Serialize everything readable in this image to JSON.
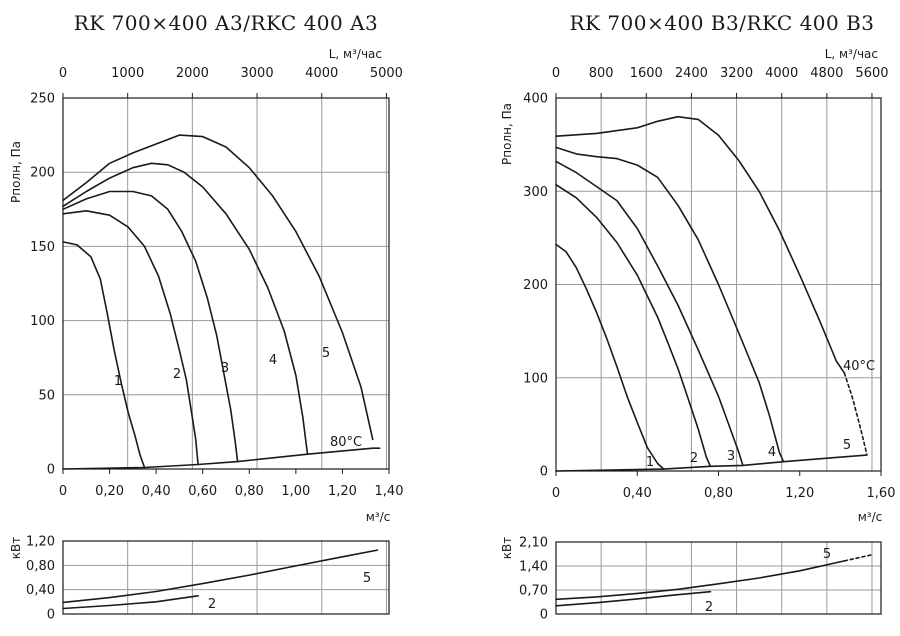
{
  "chart_data": [
    {
      "type": "line",
      "title": "RK 700×400 A3/RKC 400 A3",
      "top_axis_label": "L, м³/час",
      "top_ticks": [
        "0",
        "1000",
        "2000",
        "3000",
        "4000",
        "5000"
      ],
      "xlabel": "м³/с",
      "ylabel": "Pполн, Па",
      "xlim": [
        0,
        1.4
      ],
      "ylim": [
        0,
        250
      ],
      "x_ticks": [
        "0",
        "0,20",
        "0,40",
        "0,60",
        "0,80",
        "1,00",
        "1,20",
        "1,40"
      ],
      "y_ticks": [
        "0",
        "50",
        "100",
        "150",
        "200",
        "250"
      ],
      "grid": true,
      "series": [
        {
          "name": "1",
          "points": [
            [
              0,
              153
            ],
            [
              0.06,
              151
            ],
            [
              0.12,
              143
            ],
            [
              0.16,
              128
            ],
            [
              0.19,
              105
            ],
            [
              0.22,
              80
            ],
            [
              0.25,
              58
            ],
            [
              0.28,
              38
            ],
            [
              0.31,
              22
            ],
            [
              0.33,
              10
            ],
            [
              0.35,
              1
            ]
          ]
        },
        {
          "name": "2",
          "points": [
            [
              0,
              172
            ],
            [
              0.1,
              174
            ],
            [
              0.2,
              171
            ],
            [
              0.28,
              163
            ],
            [
              0.35,
              150
            ],
            [
              0.41,
              130
            ],
            [
              0.46,
              105
            ],
            [
              0.5,
              80
            ],
            [
              0.53,
              60
            ],
            [
              0.55,
              40
            ],
            [
              0.57,
              20
            ],
            [
              0.58,
              3
            ]
          ]
        },
        {
          "name": "3",
          "points": [
            [
              0,
              175
            ],
            [
              0.1,
              182
            ],
            [
              0.2,
              187
            ],
            [
              0.3,
              187
            ],
            [
              0.38,
              184
            ],
            [
              0.45,
              175
            ],
            [
              0.51,
              160
            ],
            [
              0.57,
              140
            ],
            [
              0.62,
              115
            ],
            [
              0.66,
              90
            ],
            [
              0.69,
              65
            ],
            [
              0.72,
              40
            ],
            [
              0.74,
              18
            ],
            [
              0.75,
              5
            ]
          ]
        },
        {
          "name": "4",
          "points": [
            [
              0,
              177
            ],
            [
              0.1,
              187
            ],
            [
              0.2,
              196
            ],
            [
              0.3,
              203
            ],
            [
              0.38,
              206
            ],
            [
              0.45,
              205
            ],
            [
              0.52,
              200
            ],
            [
              0.6,
              190
            ],
            [
              0.7,
              172
            ],
            [
              0.8,
              148
            ],
            [
              0.88,
              122
            ],
            [
              0.95,
              93
            ],
            [
              1.0,
              63
            ],
            [
              1.03,
              35
            ],
            [
              1.05,
              10
            ]
          ]
        },
        {
          "name": "5",
          "points": [
            [
              0,
              181
            ],
            [
              0.1,
              193
            ],
            [
              0.2,
              206
            ],
            [
              0.3,
              213
            ],
            [
              0.4,
              219
            ],
            [
              0.5,
              225
            ],
            [
              0.6,
              224
            ],
            [
              0.7,
              217
            ],
            [
              0.8,
              203
            ],
            [
              0.9,
              184
            ],
            [
              1.0,
              160
            ],
            [
              1.1,
              130
            ],
            [
              1.2,
              92
            ],
            [
              1.28,
              55
            ],
            [
              1.33,
              20
            ]
          ]
        },
        {
          "name": "80°C",
          "points": [
            [
              0,
              0
            ],
            [
              0.35,
              1
            ],
            [
              0.58,
              3
            ],
            [
              0.75,
              5
            ],
            [
              1.05,
              10
            ],
            [
              1.33,
              14
            ],
            [
              1.36,
              14
            ]
          ]
        }
      ],
      "labels": [
        "1",
        "2",
        "3",
        "4",
        "5",
        "80°C"
      ]
    },
    {
      "type": "line",
      "ylabel": "кВт",
      "xlim": [
        0,
        1.4
      ],
      "ylim": [
        0,
        1.2
      ],
      "y_ticks": [
        "0",
        "0,40",
        "0,80",
        "1,20"
      ],
      "grid": true,
      "series": [
        {
          "name": "2",
          "points": [
            [
              0,
              0.09
            ],
            [
              0.2,
              0.14
            ],
            [
              0.4,
              0.2
            ],
            [
              0.58,
              0.3
            ]
          ]
        },
        {
          "name": "5",
          "points": [
            [
              0,
              0.19
            ],
            [
              0.2,
              0.27
            ],
            [
              0.4,
              0.37
            ],
            [
              0.6,
              0.5
            ],
            [
              0.8,
              0.64
            ],
            [
              1.0,
              0.79
            ],
            [
              1.2,
              0.94
            ],
            [
              1.35,
              1.05
            ]
          ]
        }
      ],
      "labels": [
        "2",
        "5"
      ]
    },
    {
      "type": "line",
      "title": "RK 700×400 B3/RKC 400 B3",
      "top_axis_label": "L, м³/час",
      "top_ticks": [
        "0",
        "800",
        "1600",
        "2400",
        "3200",
        "4000",
        "4800",
        "5600"
      ],
      "xlabel": "м³/с",
      "ylabel": "Pполн, Па",
      "xlim": [
        0,
        1.6
      ],
      "ylim": [
        0,
        400
      ],
      "x_ticks": [
        "0",
        "0,40",
        "0,80",
        "1,20",
        "1,60"
      ],
      "y_ticks": [
        "0",
        "100",
        "200",
        "300",
        "400"
      ],
      "grid": true,
      "series": [
        {
          "name": "1",
          "points": [
            [
              0,
              243
            ],
            [
              0.05,
              235
            ],
            [
              0.1,
              218
            ],
            [
              0.15,
              195
            ],
            [
              0.2,
              170
            ],
            [
              0.25,
              142
            ],
            [
              0.3,
              112
            ],
            [
              0.35,
              80
            ],
            [
              0.4,
              52
            ],
            [
              0.45,
              25
            ],
            [
              0.5,
              8
            ],
            [
              0.53,
              2
            ]
          ]
        },
        {
          "name": "2",
          "points": [
            [
              0,
              307
            ],
            [
              0.1,
              293
            ],
            [
              0.2,
              272
            ],
            [
              0.3,
              245
            ],
            [
              0.4,
              210
            ],
            [
              0.5,
              165
            ],
            [
              0.55,
              138
            ],
            [
              0.6,
              110
            ],
            [
              0.65,
              78
            ],
            [
              0.7,
              45
            ],
            [
              0.74,
              15
            ],
            [
              0.76,
              5
            ]
          ]
        },
        {
          "name": "3",
          "points": [
            [
              0,
              332
            ],
            [
              0.1,
              320
            ],
            [
              0.2,
              305
            ],
            [
              0.3,
              290
            ],
            [
              0.4,
              260
            ],
            [
              0.5,
              220
            ],
            [
              0.6,
              178
            ],
            [
              0.7,
              130
            ],
            [
              0.8,
              80
            ],
            [
              0.85,
              50
            ],
            [
              0.9,
              20
            ],
            [
              0.92,
              6
            ]
          ]
        },
        {
          "name": "4",
          "points": [
            [
              0,
              347
            ],
            [
              0.1,
              340
            ],
            [
              0.2,
              337
            ],
            [
              0.3,
              335
            ],
            [
              0.4,
              328
            ],
            [
              0.5,
              315
            ],
            [
              0.6,
              285
            ],
            [
              0.7,
              248
            ],
            [
              0.8,
              200
            ],
            [
              0.9,
              148
            ],
            [
              1.0,
              95
            ],
            [
              1.05,
              60
            ],
            [
              1.1,
              20
            ],
            [
              1.12,
              10
            ]
          ]
        },
        {
          "name": "5",
          "points": [
            [
              0,
              359
            ],
            [
              0.2,
              362
            ],
            [
              0.4,
              368
            ],
            [
              0.5,
              375
            ],
            [
              0.6,
              380
            ],
            [
              0.7,
              377
            ],
            [
              0.8,
              360
            ],
            [
              0.9,
              333
            ],
            [
              1.0,
              300
            ],
            [
              1.1,
              258
            ],
            [
              1.2,
              210
            ],
            [
              1.3,
              160
            ],
            [
              1.38,
              118
            ],
            [
              1.42,
              105
            ]
          ]
        },
        {
          "name": "5-extension",
          "dashed": true,
          "points": [
            [
              1.42,
              105
            ],
            [
              1.46,
              78
            ],
            [
              1.5,
              45
            ],
            [
              1.53,
              18
            ]
          ]
        },
        {
          "name": "40°C",
          "points": [
            [
              0,
              0
            ],
            [
              0.53,
              2
            ],
            [
              0.76,
              5
            ],
            [
              0.92,
              6
            ],
            [
              1.12,
              10
            ],
            [
              1.35,
              14
            ],
            [
              1.53,
              17
            ]
          ]
        }
      ],
      "labels": [
        "1",
        "2",
        "3",
        "4",
        "5",
        "40°C"
      ]
    },
    {
      "type": "line",
      "ylabel": "кВт",
      "xlim": [
        0,
        1.6
      ],
      "ylim": [
        0,
        2.1
      ],
      "y_ticks": [
        "0",
        "0,70",
        "1,40",
        "2,10"
      ],
      "grid": true,
      "series": [
        {
          "name": "2",
          "points": [
            [
              0,
              0.24
            ],
            [
              0.2,
              0.33
            ],
            [
              0.4,
              0.44
            ],
            [
              0.58,
              0.55
            ],
            [
              0.76,
              0.65
            ]
          ]
        },
        {
          "name": "5",
          "points": [
            [
              0,
              0.43
            ],
            [
              0.2,
              0.5
            ],
            [
              0.4,
              0.6
            ],
            [
              0.6,
              0.72
            ],
            [
              0.8,
              0.88
            ],
            [
              1.0,
              1.05
            ],
            [
              1.2,
              1.26
            ],
            [
              1.42,
              1.55
            ]
          ]
        },
        {
          "name": "5-extension",
          "dashed": true,
          "points": [
            [
              1.42,
              1.55
            ],
            [
              1.55,
              1.72
            ]
          ]
        }
      ],
      "labels": [
        "2",
        "5"
      ]
    }
  ]
}
